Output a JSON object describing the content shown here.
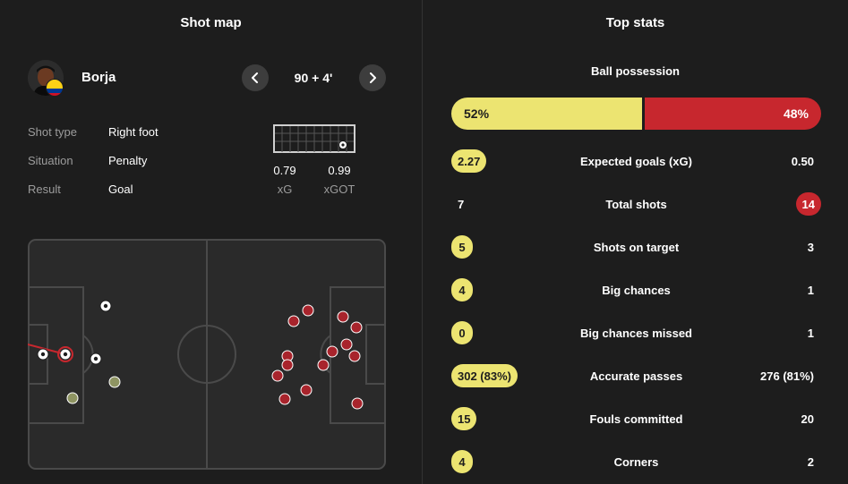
{
  "shot_map": {
    "title": "Shot map",
    "player": {
      "name": "Borja"
    },
    "minute": "90 + 4'",
    "info": [
      {
        "label": "Shot type",
        "value": "Right foot"
      },
      {
        "label": "Situation",
        "value": "Penalty"
      },
      {
        "label": "Result",
        "value": "Goal"
      }
    ],
    "xg": {
      "value": "0.79",
      "label": "xG"
    },
    "xgot": {
      "value": "0.99",
      "label": "xGOT"
    }
  },
  "top_stats": {
    "title": "Top stats",
    "possession": {
      "label": "Ball possession",
      "home": "52%",
      "away": "48%",
      "home_pct": 52
    },
    "rows": [
      {
        "name": "Expected goals (xG)",
        "home": "2.27",
        "away": "0.50",
        "highlight": "home"
      },
      {
        "name": "Total shots",
        "home": "7",
        "away": "14",
        "highlight": "away"
      },
      {
        "name": "Shots on target",
        "home": "5",
        "away": "3",
        "highlight": "home"
      },
      {
        "name": "Big chances",
        "home": "4",
        "away": "1",
        "highlight": "home"
      },
      {
        "name": "Big chances missed",
        "home": "0",
        "away": "1",
        "highlight": "home"
      },
      {
        "name": "Accurate passes",
        "home": "302 (83%)",
        "away": "276 (81%)",
        "highlight": "home"
      },
      {
        "name": "Fouls committed",
        "home": "15",
        "away": "20",
        "highlight": "home"
      },
      {
        "name": "Corners",
        "home": "4",
        "away": "2",
        "highlight": "home"
      }
    ]
  },
  "colors": {
    "home": "#ece471",
    "away": "#c7272e",
    "background": "#1d1d1d",
    "muted": "#9c9c9c"
  }
}
